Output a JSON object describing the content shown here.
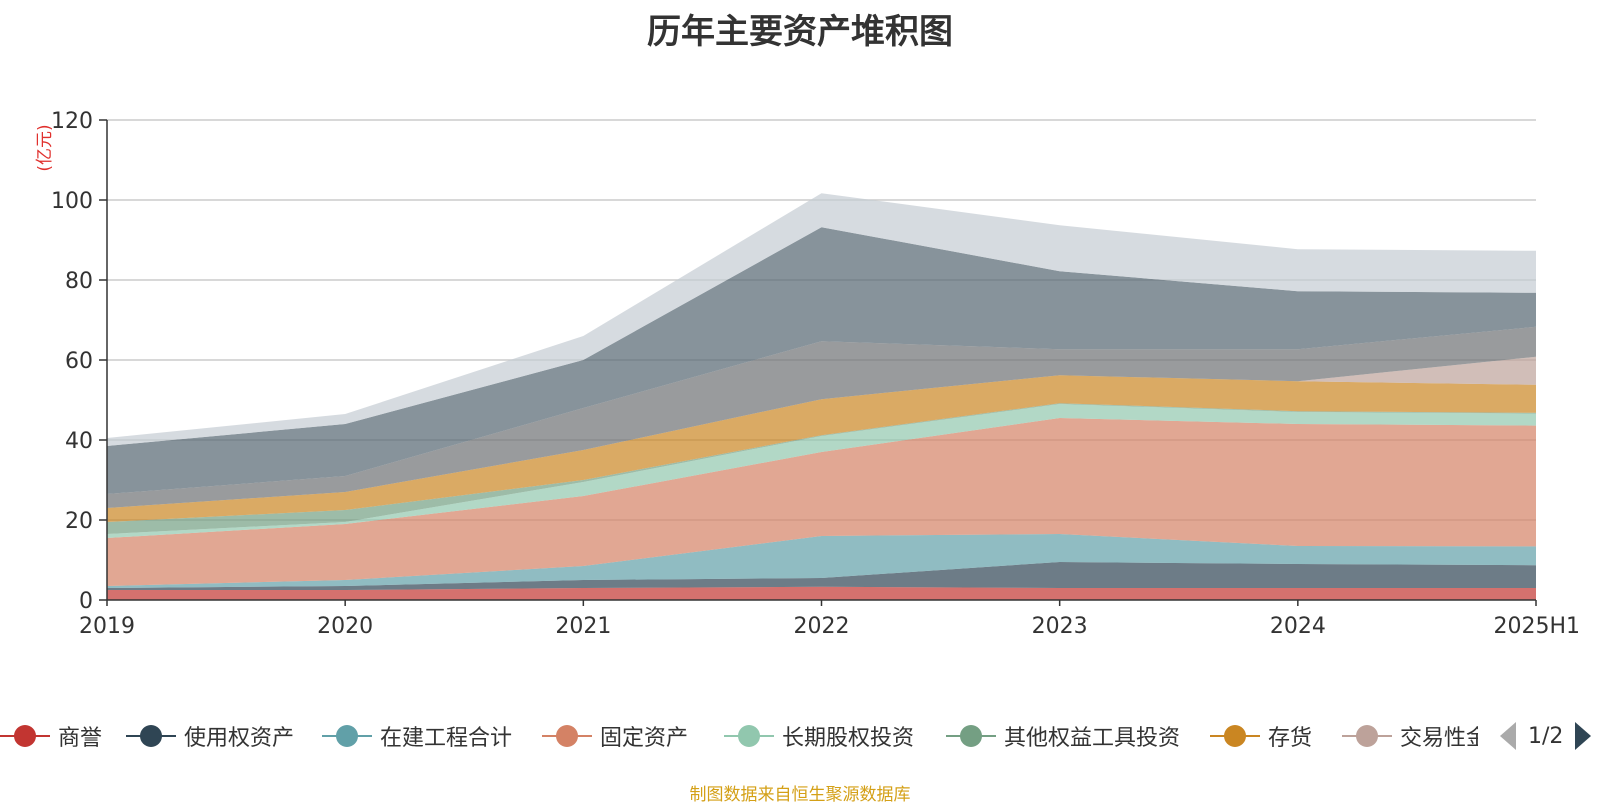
{
  "title": "历年主要资产堆积图",
  "source_note": "制图数据来自恒生聚源数据库",
  "legend_pager": "1/2",
  "chart_data": {
    "type": "area",
    "stacked": true,
    "title": "历年主要资产堆积图",
    "ylabel": "(亿元)",
    "xlabel": "",
    "categories": [
      "2019",
      "2020",
      "2021",
      "2022",
      "2023",
      "2024",
      "2025H1"
    ],
    "ylim": [
      0,
      120
    ],
    "yticks": [
      0,
      20,
      40,
      60,
      80,
      100,
      120
    ],
    "grid": true,
    "legend_position": "bottom",
    "series": [
      {
        "name": "商誉",
        "color": "#c23531",
        "values": [
          2.5,
          2.5,
          3.0,
          3.3,
          3.0,
          3.0,
          3.0
        ]
      },
      {
        "name": "使用权资产",
        "color": "#2f4554",
        "values": [
          0.5,
          1.0,
          2.0,
          2.2,
          6.5,
          6.0,
          5.7
        ]
      },
      {
        "name": "在建工程合计",
        "color": "#61a0a8",
        "values": [
          0.5,
          1.5,
          3.5,
          10.5,
          7.0,
          4.5,
          4.7
        ]
      },
      {
        "name": "固定资产",
        "color": "#d48265",
        "values": [
          12.0,
          14.0,
          17.5,
          21.0,
          29.0,
          30.5,
          30.2
        ]
      },
      {
        "name": "长期股权投资",
        "color": "#91c7ae",
        "values": [
          1.0,
          0.5,
          3.5,
          4.0,
          3.5,
          3.0,
          3.0
        ]
      },
      {
        "name": "其他权益工具投资",
        "color": "#749f83",
        "values": [
          3.0,
          3.0,
          0.5,
          0.2,
          0.2,
          0.2,
          0.2
        ]
      },
      {
        "name": "存货",
        "color": "#ca8622",
        "values": [
          3.5,
          4.5,
          7.5,
          9.0,
          7.0,
          7.5,
          7.0
        ]
      },
      {
        "name": "交易性金融资产",
        "color": "#bda29a",
        "values": [
          0,
          0,
          0,
          0,
          0,
          0,
          7.0
        ]
      },
      {
        "name": "",
        "color": "#6e7074",
        "values": [
          3.5,
          4.0,
          10.5,
          14.5,
          6.5,
          8.0,
          7.5
        ]
      },
      {
        "name": "",
        "color": "#546570",
        "values": [
          12.0,
          13.0,
          12.0,
          28.5,
          19.5,
          14.5,
          8.5
        ]
      },
      {
        "name": "",
        "color": "#c4ccd3",
        "values": [
          2.0,
          2.5,
          6.0,
          8.5,
          11.5,
          10.5,
          10.5
        ]
      }
    ],
    "legend_visible": [
      "商誉",
      "使用权资产",
      "在建工程合计",
      "固定资产",
      "长期股权投资",
      "其他权益工具投资",
      "存货",
      "交易性金融资产"
    ]
  }
}
